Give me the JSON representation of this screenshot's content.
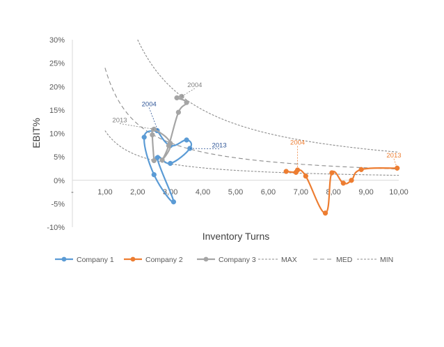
{
  "chart_data": {
    "type": "scatter",
    "title": "",
    "xlabel": "Inventory Turns",
    "ylabel": "EBIT%",
    "xlim": [
      0,
      10
    ],
    "ylim": [
      -10,
      30
    ],
    "x_ticks": [
      {
        "value": 0,
        "label": "-"
      },
      {
        "value": 1,
        "label": "1,00"
      },
      {
        "value": 2,
        "label": "2,00"
      },
      {
        "value": 3,
        "label": "3,00"
      },
      {
        "value": 4,
        "label": "4,00"
      },
      {
        "value": 5,
        "label": "5,00"
      },
      {
        "value": 6,
        "label": "6,00"
      },
      {
        "value": 7,
        "label": "7,00"
      },
      {
        "value": 8,
        "label": "8,00"
      },
      {
        "value": 9,
        "label": "9,00"
      },
      {
        "value": 10,
        "label": "10,00"
      }
    ],
    "y_ticks": [
      {
        "value": 30,
        "label": "30%"
      },
      {
        "value": 25,
        "label": "25%"
      },
      {
        "value": 20,
        "label": "20%"
      },
      {
        "value": 15,
        "label": "15%"
      },
      {
        "value": 10,
        "label": "10%"
      },
      {
        "value": 5,
        "label": "5%"
      },
      {
        "value": 0,
        "label": "0%"
      },
      {
        "value": -5,
        "label": "-5%"
      },
      {
        "value": -10,
        "label": "-10%"
      }
    ],
    "grid": false,
    "legend_position": "bottom",
    "series": [
      {
        "name": "Company 1",
        "color": "#5b9bd5",
        "style": "smooth-line-markers",
        "points": [
          [
            2.6,
            10.6
          ],
          [
            2.2,
            9.2
          ],
          [
            2.5,
            1.2
          ],
          [
            3.1,
            -4.6
          ],
          [
            2.6,
            4.8
          ],
          [
            3.0,
            3.6
          ],
          [
            3.6,
            6.8
          ],
          [
            3.5,
            8.6
          ],
          [
            3.0,
            7.4
          ],
          [
            2.6,
            10.6
          ]
        ]
      },
      {
        "name": "Company 2",
        "color": "#ed7d31",
        "style": "smooth-line-markers",
        "points": [
          [
            6.55,
            1.9
          ],
          [
            6.85,
            1.7
          ],
          [
            6.9,
            2.2
          ],
          [
            7.15,
            0.9
          ],
          [
            7.75,
            -7.0
          ],
          [
            7.95,
            1.6
          ],
          [
            8.3,
            -0.6
          ],
          [
            8.55,
            0.0
          ],
          [
            8.85,
            2.3
          ],
          [
            9.95,
            2.6
          ]
        ]
      },
      {
        "name": "Company 3",
        "color": "#a5a5a5",
        "style": "smooth-line-markers",
        "points": [
          [
            3.35,
            17.9
          ],
          [
            3.2,
            17.6
          ],
          [
            3.5,
            16.6
          ],
          [
            3.25,
            14.5
          ],
          [
            2.95,
            7.4
          ],
          [
            2.75,
            4.3
          ],
          [
            3.0,
            7.9
          ],
          [
            2.5,
            10.9
          ],
          [
            2.45,
            9.7
          ],
          [
            2.5,
            4.2
          ]
        ]
      },
      {
        "name": "MAX",
        "color": "#8c8c8c",
        "style": "dotted",
        "function": "60/x",
        "x_range": [
          2.0,
          10.0
        ]
      },
      {
        "name": "MED",
        "color": "#8c8c8c",
        "style": "dashed",
        "function": "24/x",
        "x_range": [
          1.0,
          10.0
        ]
      },
      {
        "name": "MIN",
        "color": "#8c8c8c",
        "style": "dotted",
        "function": "10.6/x",
        "x_range": [
          1.0,
          10.0
        ]
      }
    ],
    "annotations": [
      {
        "text": "2004",
        "series": "Company 1",
        "color": "#2e5597",
        "x": 2.35,
        "y": 15.8,
        "leader_to": [
          2.62,
          10.6
        ]
      },
      {
        "text": "2013",
        "series": "Company 1",
        "color": "#2e5597",
        "x": 4.5,
        "y": 7.0,
        "leader_to": [
          3.6,
          6.8
        ]
      },
      {
        "text": "2004",
        "series": "Company 2",
        "color": "#ed7d31",
        "x": 6.9,
        "y": 7.6,
        "leader_to": [
          6.9,
          2.2
        ]
      },
      {
        "text": "2013",
        "series": "Company 2",
        "color": "#ed7d31",
        "x": 9.85,
        "y": 4.9,
        "leader_to": [
          9.95,
          2.6
        ]
      },
      {
        "text": "2004",
        "series": "Company 3",
        "color": "#7f7f7f",
        "x": 3.75,
        "y": 19.9,
        "leader_to": [
          3.35,
          17.9
        ]
      },
      {
        "text": "2013",
        "series": "Company 3",
        "color": "#7f7f7f",
        "x": 1.45,
        "y": 12.4,
        "leader_to": [
          2.5,
          10.9
        ]
      }
    ]
  }
}
